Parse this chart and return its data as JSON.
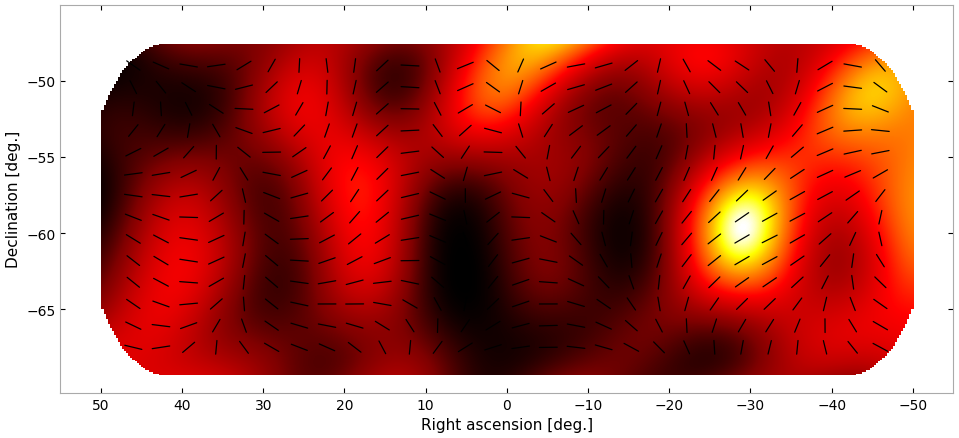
{
  "title": "",
  "xlabel": "Right ascension [deg.]",
  "ylabel": "Declination [deg.]",
  "xlim": [
    55,
    -55
  ],
  "ylim": [
    -70.5,
    -45
  ],
  "xticks": [
    50,
    40,
    30,
    20,
    10,
    0,
    -10,
    -20,
    -30,
    -40,
    -50
  ],
  "yticks": [
    -50,
    -55,
    -60,
    -65
  ],
  "figsize": [
    9.59,
    4.39
  ],
  "dpi": 100,
  "bg_color": "#ffffff",
  "seed": 42,
  "n_pol_ra": 28,
  "n_pol_dec": 14
}
